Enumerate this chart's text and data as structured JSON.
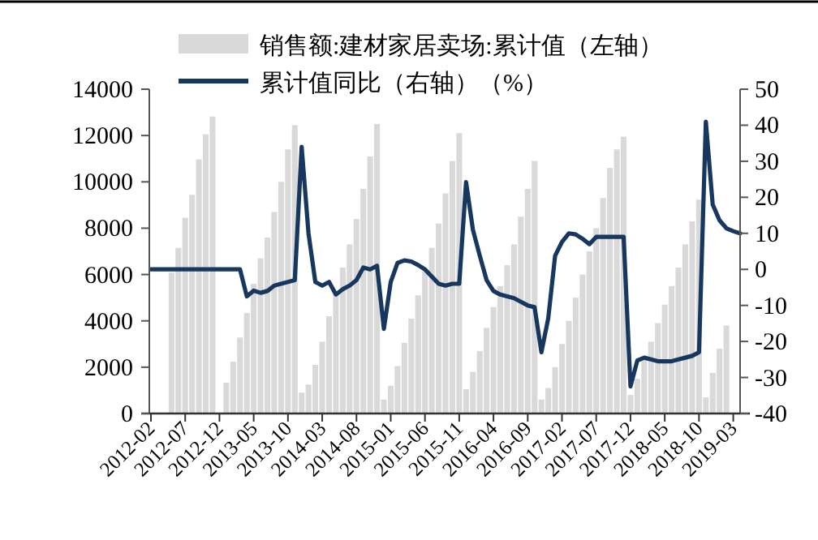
{
  "chart_data": {
    "type": "bar",
    "legend": "top",
    "categories": [
      "2012-02",
      null,
      null,
      null,
      null,
      "2012-07",
      null,
      null,
      null,
      null,
      "2012-12",
      null,
      null,
      null,
      null,
      "2013-05",
      null,
      null,
      null,
      null,
      "2013-10",
      null,
      null,
      null,
      null,
      "2014-03",
      null,
      null,
      null,
      null,
      "2014-08",
      null,
      null,
      null,
      null,
      "2015-01",
      null,
      null,
      null,
      null,
      "2015-06",
      null,
      null,
      null,
      null,
      "2015-11",
      null,
      null,
      null,
      null,
      "2016-04",
      null,
      null,
      null,
      null,
      "2016-09",
      null,
      null,
      null,
      null,
      "2017-02",
      null,
      null,
      null,
      null,
      "2017-07",
      null,
      null,
      null,
      null,
      "2017-12",
      null,
      null,
      null,
      null,
      "2018-05",
      null,
      null,
      null,
      null,
      "2018-10",
      null,
      null,
      null,
      null,
      "2019-03",
      null
    ],
    "ylim": [
      0,
      14000
    ],
    "yticks": [
      0,
      2000,
      4000,
      6000,
      8000,
      10000,
      12000,
      14000
    ],
    "y2lim": [
      -40,
      50
    ],
    "y2ticks": [
      -40,
      -30,
      -20,
      -10,
      0,
      10,
      20,
      30,
      40,
      50
    ],
    "series": [
      {
        "name": "销售额:建材家居卖场:累计值（左轴）",
        "color": "#d9d9d9",
        "values": [
          null,
          null,
          null,
          6080,
          7150,
          8450,
          9440,
          10970,
          12050,
          12820,
          null,
          1330,
          2240,
          3280,
          4340,
          5600,
          6700,
          7600,
          8700,
          10000,
          11400,
          12450,
          900,
          1250,
          2100,
          3100,
          4200,
          5200,
          6300,
          7300,
          8400,
          9700,
          11100,
          12500,
          600,
          1200,
          2050,
          3050,
          4100,
          5100,
          6150,
          7150,
          8200,
          9500,
          10900,
          12100,
          1050,
          1800,
          2700,
          3700,
          4600,
          5500,
          6400,
          7300,
          8500,
          9700,
          10900,
          600,
          1100,
          2000,
          3000,
          4000,
          5000,
          6000,
          7000,
          8000,
          9300,
          10600,
          11400,
          11950,
          800,
          1500,
          2300,
          3100,
          3900,
          4700,
          5500,
          6300,
          7300,
          8300,
          9230,
          700,
          1750,
          2800,
          3800,
          null,
          null
        ]
      },
      {
        "name": "累计值同比（右轴）（%）",
        "type": "line",
        "axis": "y2",
        "color": "#17375e",
        "values": [
          0,
          0,
          0,
          0,
          0,
          0,
          0,
          0,
          0,
          0,
          0,
          0,
          0,
          0,
          -7.5,
          -5.9,
          -6.5,
          -6,
          -4.5,
          -4,
          -3.5,
          -3,
          34,
          10,
          -3.5,
          -4.5,
          -3.5,
          -7,
          -5.5,
          -4.5,
          -3,
          0.5,
          0,
          1,
          -16.5,
          -3.5,
          1.8,
          2.5,
          2.2,
          1.2,
          0,
          -2,
          -4,
          -4.5,
          -4,
          -4,
          24.2,
          11,
          3.8,
          -3,
          -6,
          -7,
          -7.5,
          -8,
          -9,
          -10,
          -10.5,
          -23,
          -13.5,
          3.8,
          7.6,
          10,
          9.7,
          8.5,
          7,
          9,
          9,
          9,
          9,
          9,
          -32.5,
          -25.3,
          -24.5,
          -25,
          -25.5,
          -25.5,
          -25.5,
          -25,
          -24.5,
          -24,
          -23,
          41,
          18,
          13.6,
          11.4,
          10.6,
          10
        ]
      }
    ]
  }
}
